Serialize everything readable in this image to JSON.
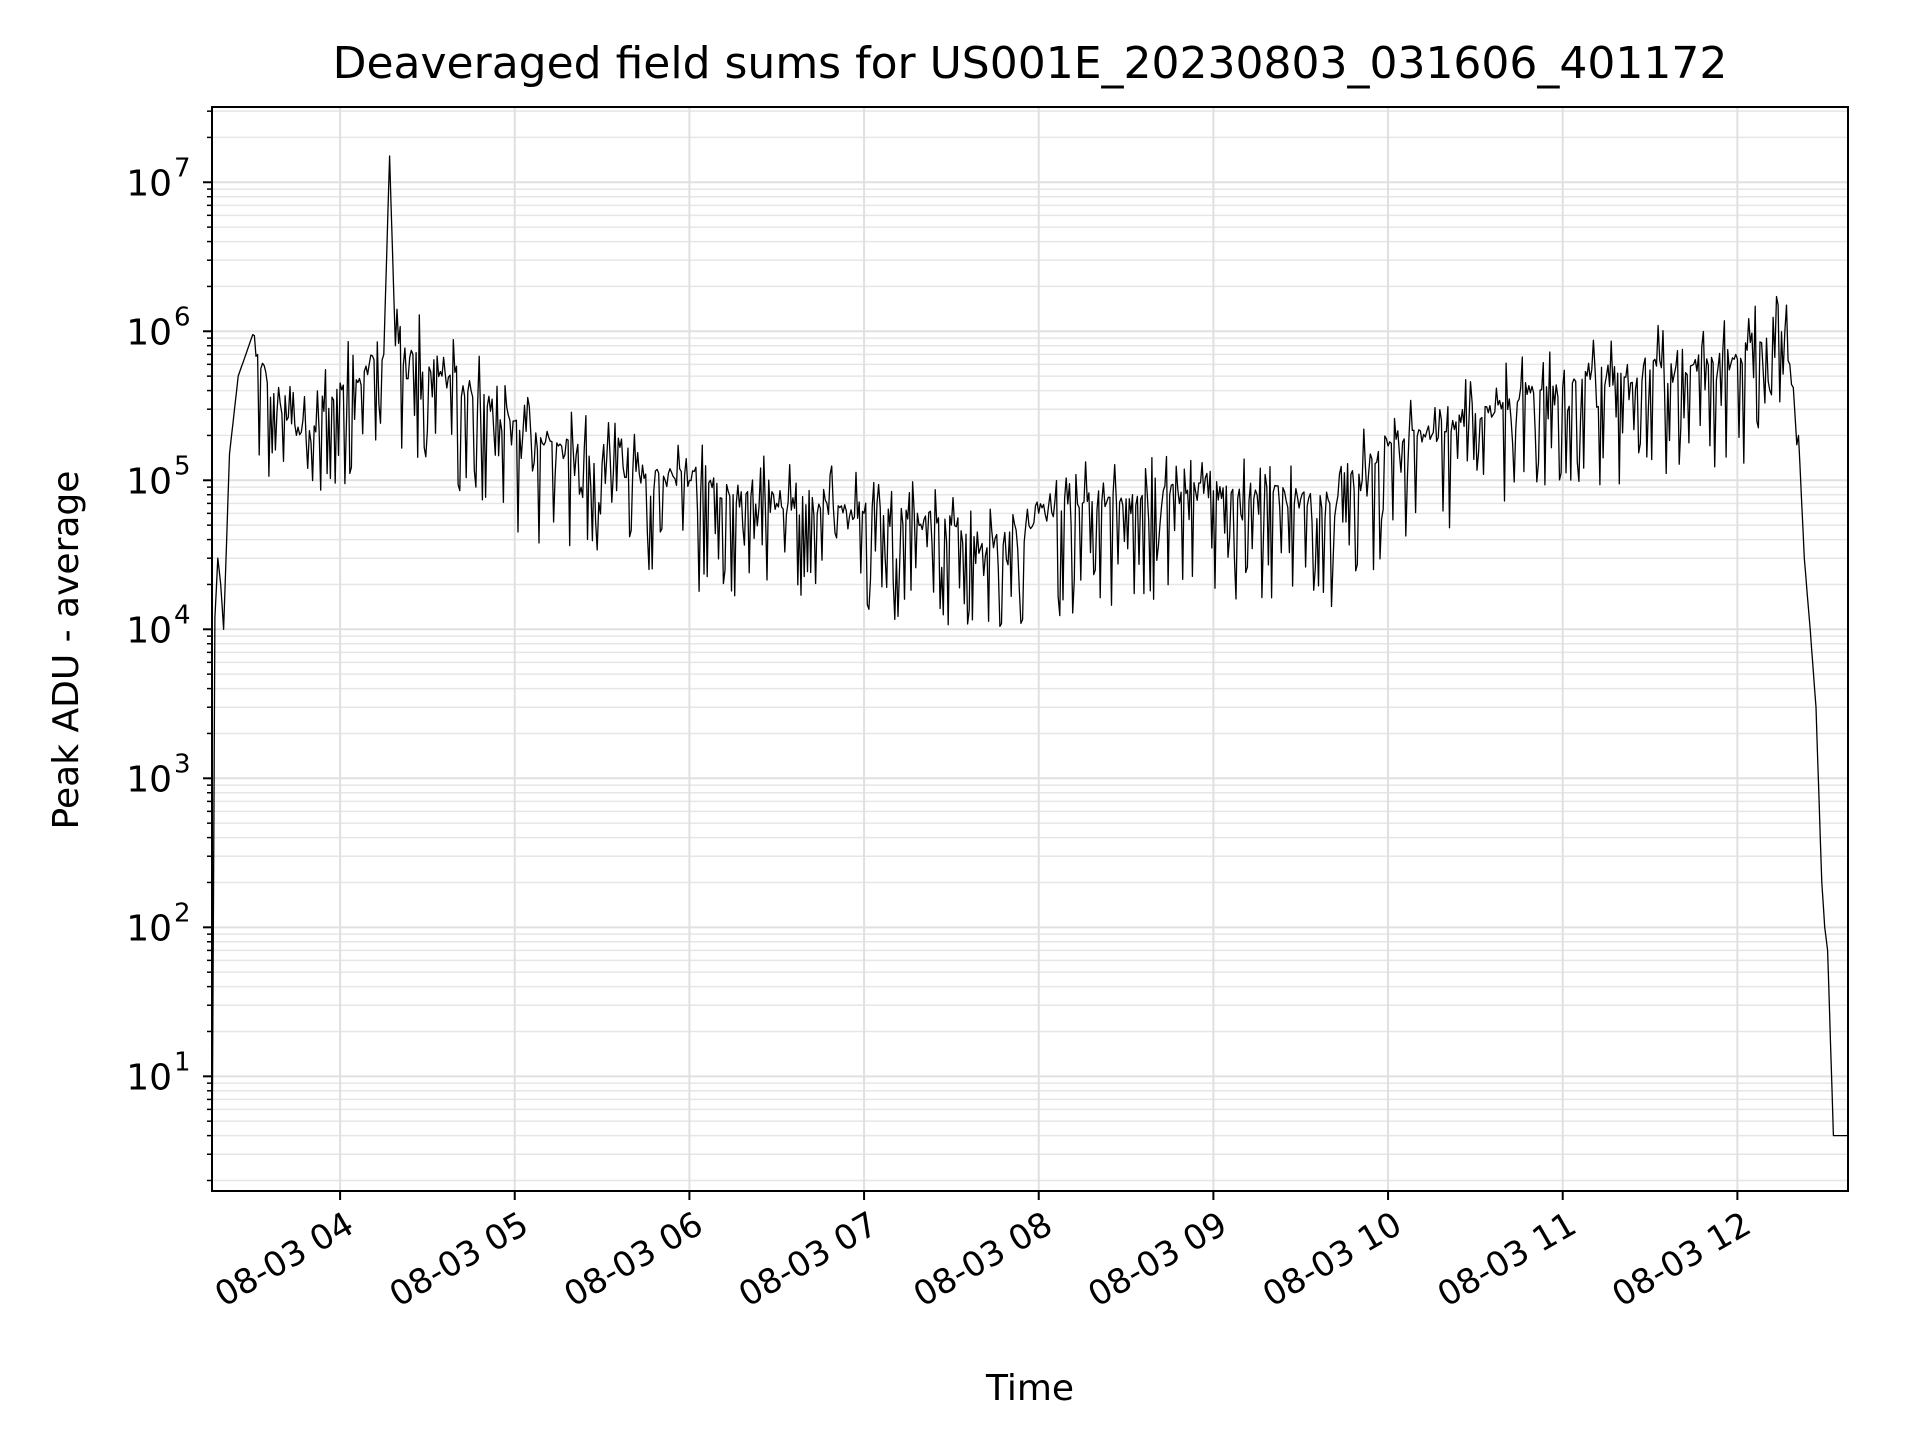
{
  "chart_data": {
    "type": "line",
    "title": "Deaveraged field sums for US001E_20230803_031606_401172",
    "xlabel": "Time",
    "ylabel": "Peak ADU - average",
    "yscale": "log",
    "grid": true,
    "grid_minor": true,
    "legend": "none",
    "xlim": [
      "2023-08-03 03:16",
      "2023-08-03 12:38"
    ],
    "ylim": [
      1.7,
      32000000.0
    ],
    "x_ticks": [
      {
        "t": "2023-08-03 04:00",
        "label": "08-03 04"
      },
      {
        "t": "2023-08-03 05:00",
        "label": "08-03 05"
      },
      {
        "t": "2023-08-03 06:00",
        "label": "08-03 06"
      },
      {
        "t": "2023-08-03 07:00",
        "label": "08-03 07"
      },
      {
        "t": "2023-08-03 08:00",
        "label": "08-03 08"
      },
      {
        "t": "2023-08-03 09:00",
        "label": "08-03 09"
      },
      {
        "t": "2023-08-03 10:00",
        "label": "08-03 10"
      },
      {
        "t": "2023-08-03 11:00",
        "label": "08-03 11"
      },
      {
        "t": "2023-08-03 12:00",
        "label": "08-03 12"
      }
    ],
    "y_ticks": [
      {
        "v": 10,
        "base": "10",
        "exp": "1"
      },
      {
        "v": 100,
        "base": "10",
        "exp": "2"
      },
      {
        "v": 1000,
        "base": "10",
        "exp": "3"
      },
      {
        "v": 10000,
        "base": "10",
        "exp": "4"
      },
      {
        "v": 100000,
        "base": "10",
        "exp": "5"
      },
      {
        "v": 1000000,
        "base": "10",
        "exp": "6"
      },
      {
        "v": 10000000,
        "base": "10",
        "exp": "7"
      }
    ],
    "series": [
      {
        "color": "#000000",
        "x": [
          "2023-08-03 03:16",
          "2023-08-03 03:17",
          "2023-08-03 03:18",
          "2023-08-03 03:19",
          "2023-08-03 03:20",
          "2023-08-03 03:22",
          "2023-08-03 03:25",
          "2023-08-03 03:30",
          "2023-08-03 03:35",
          "2023-08-03 03:40",
          "2023-08-03 03:45",
          "2023-08-03 03:50",
          "2023-08-03 04:00",
          "2023-08-03 04:10",
          "2023-08-03 04:15",
          "2023-08-03 04:17",
          "2023-08-03 04:19",
          "2023-08-03 04:25",
          "2023-08-03 04:35",
          "2023-08-03 04:45",
          "2023-08-03 05:00",
          "2023-08-03 05:15",
          "2023-08-03 05:30",
          "2023-08-03 05:45",
          "2023-08-03 06:00",
          "2023-08-03 06:15",
          "2023-08-03 06:30",
          "2023-08-03 06:45",
          "2023-08-03 07:00",
          "2023-08-03 07:15",
          "2023-08-03 07:30",
          "2023-08-03 07:40",
          "2023-08-03 07:50",
          "2023-08-03 08:00",
          "2023-08-03 08:15",
          "2023-08-03 08:30",
          "2023-08-03 08:45",
          "2023-08-03 09:00",
          "2023-08-03 09:15",
          "2023-08-03 09:30",
          "2023-08-03 09:40",
          "2023-08-03 09:50",
          "2023-08-03 10:00",
          "2023-08-03 10:15",
          "2023-08-03 10:30",
          "2023-08-03 10:45",
          "2023-08-03 11:00",
          "2023-08-03 11:15",
          "2023-08-03 11:30",
          "2023-08-03 11:45",
          "2023-08-03 12:00",
          "2023-08-03 12:10",
          "2023-08-03 12:14",
          "2023-08-03 12:18",
          "2023-08-03 12:21",
          "2023-08-03 12:23",
          "2023-08-03 12:25",
          "2023-08-03 12:27",
          "2023-08-03 12:29",
          "2023-08-03 12:30",
          "2023-08-03 12:31",
          "2023-08-03 12:33",
          "2023-08-03 12:38"
        ],
        "y": [
          2,
          12000,
          30000,
          20000,
          10000,
          150000,
          500000,
          950000,
          450000,
          280000,
          200000,
          180000,
          450000,
          600000,
          700000,
          15000000,
          800000,
          700000,
          500000,
          400000,
          250000,
          170000,
          130000,
          110000,
          100000,
          80000,
          70000,
          65000,
          60000,
          55000,
          50000,
          35000,
          45000,
          60000,
          70000,
          75000,
          80000,
          85000,
          80000,
          75000,
          70000,
          110000,
          170000,
          200000,
          280000,
          350000,
          420000,
          500000,
          550000,
          600000,
          650000,
          900000,
          1500000,
          600000,
          200000,
          30000,
          10000,
          3000,
          200,
          100,
          70,
          4,
          4
        ]
      }
    ]
  }
}
